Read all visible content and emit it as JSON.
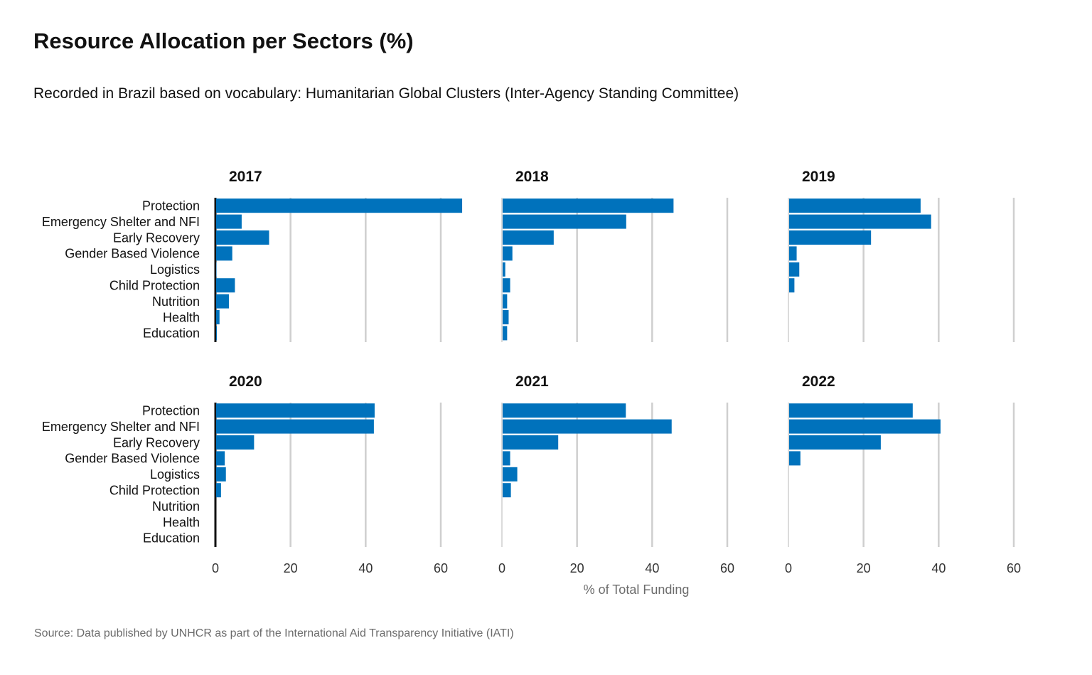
{
  "chart_data": {
    "type": "bar",
    "orientation": "horizontal",
    "title": "Resource  Allocation per Sectors (%)",
    "subtitle": "Recorded in Brazil based on vocabulary: Humanitarian Global Clusters (Inter-Agency Standing Committee)",
    "xlabel": "% of Total Funding",
    "source": "Source: Data published by UNHCR as part of the International  Aid Transparency Initiative (IATI)",
    "categories": [
      "Protection",
      "Emergency Shelter and NFI",
      "Early Recovery",
      "Gender Based Violence",
      "Logistics",
      "Child Protection",
      "Nutrition",
      "Health",
      "Education"
    ],
    "xlim": [
      0,
      60
    ],
    "xticks": [
      "0",
      "20",
      "40",
      "60"
    ],
    "grid": "vertical",
    "bar_color": "#0072bc",
    "facets": [
      {
        "year": "2017",
        "values": [
          65.5,
          6.8,
          14.1,
          4.3,
          0.1,
          5.0,
          3.4,
          0.9,
          0.2
        ]
      },
      {
        "year": "2018",
        "values": [
          45.5,
          32.9,
          13.6,
          2.6,
          0.7,
          2.0,
          1.2,
          1.6,
          1.2
        ]
      },
      {
        "year": "2019",
        "values": [
          35.0,
          37.8,
          21.8,
          2.0,
          2.7,
          1.4,
          0,
          0,
          0
        ]
      },
      {
        "year": "2020",
        "values": [
          42.2,
          42.0,
          10.1,
          2.3,
          2.6,
          1.3,
          0,
          0,
          0
        ]
      },
      {
        "year": "2021",
        "values": [
          32.8,
          45.0,
          14.8,
          2.0,
          3.9,
          2.2,
          0,
          0,
          0
        ]
      },
      {
        "year": "2022",
        "values": [
          32.9,
          40.3,
          24.4,
          3.0,
          0,
          0,
          0,
          0,
          0
        ]
      }
    ]
  }
}
